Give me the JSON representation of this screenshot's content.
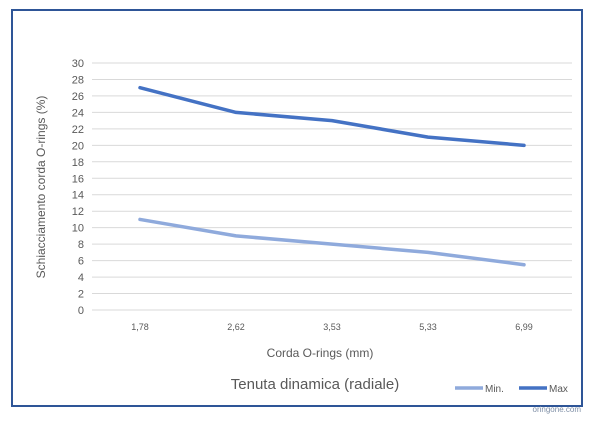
{
  "chart_data": {
    "type": "line",
    "title": "Tenuta dinamica (radiale)",
    "xlabel": "Corda O-rings (mm)",
    "ylabel": "Schiacciamento corda O-rings (%)",
    "categories": [
      "1,78",
      "2,62",
      "3,53",
      "5,33",
      "6,99"
    ],
    "ylim": [
      0,
      30
    ],
    "yticks": [
      0,
      2,
      4,
      6,
      8,
      10,
      12,
      14,
      16,
      18,
      20,
      22,
      24,
      26,
      28,
      30
    ],
    "grid": true,
    "legend_position": "bottom-right",
    "series": [
      {
        "name": "Min.",
        "values": [
          11,
          9,
          8,
          7,
          5.5
        ],
        "color": "#8faadc"
      },
      {
        "name": "Max",
        "values": [
          27,
          24,
          23,
          21,
          20
        ],
        "color": "#4472c4"
      }
    ]
  },
  "colors": {
    "frame": "#2e5597",
    "grid": "#d9d9d9"
  },
  "footer": {
    "credit": "oringone.com"
  }
}
